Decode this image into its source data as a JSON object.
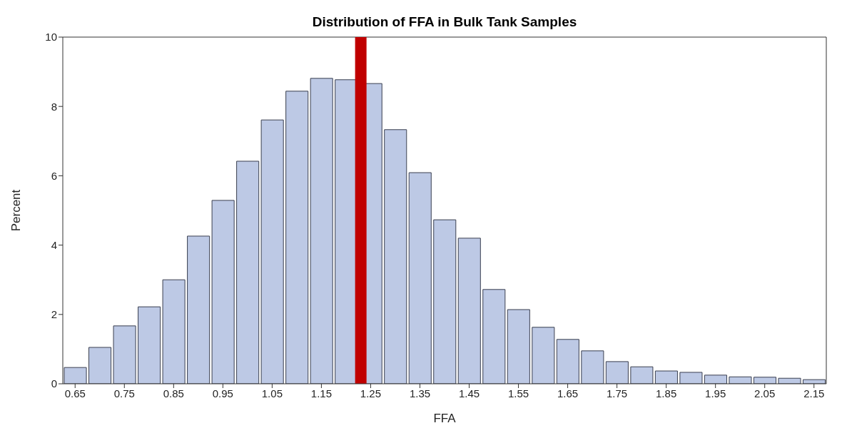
{
  "chart_data": {
    "type": "histogram",
    "title": "Distribution of FFA in Bulk Tank Samples",
    "xlabel": "FFA",
    "ylabel": "Percent",
    "bins": [
      0.625,
      0.675,
      0.725,
      0.775,
      0.825,
      0.875,
      0.925,
      0.975,
      1.025,
      1.075,
      1.125,
      1.175,
      1.225,
      1.275,
      1.325,
      1.375,
      1.425,
      1.475,
      1.525,
      1.575,
      1.625,
      1.675,
      1.725,
      1.775,
      1.825,
      1.875,
      1.925,
      1.975,
      2.025,
      2.075,
      2.125,
      2.175
    ],
    "values": [
      0.47,
      1.05,
      1.67,
      2.22,
      3.0,
      4.26,
      5.29,
      6.42,
      7.61,
      8.44,
      8.81,
      8.77,
      8.66,
      7.33,
      6.09,
      4.73,
      4.2,
      2.72,
      2.14,
      1.63,
      1.28,
      0.95,
      0.64,
      0.49,
      0.37,
      0.33,
      0.25,
      0.2,
      0.19,
      0.16,
      0.12
    ],
    "color": "#bdc9e5",
    "xlim": [
      0.625,
      2.175
    ],
    "xticks": [
      0.65,
      0.75,
      0.85,
      0.95,
      1.05,
      1.15,
      1.25,
      1.35,
      1.45,
      1.55,
      1.65,
      1.75,
      1.85,
      1.95,
      2.05,
      2.15
    ],
    "ylim": [
      0,
      10
    ],
    "yticks": [
      0,
      2,
      4,
      6,
      8,
      10
    ],
    "ref_lines": [
      {
        "axis": "x",
        "value": 1.23,
        "color": "#c00000"
      }
    ]
  }
}
